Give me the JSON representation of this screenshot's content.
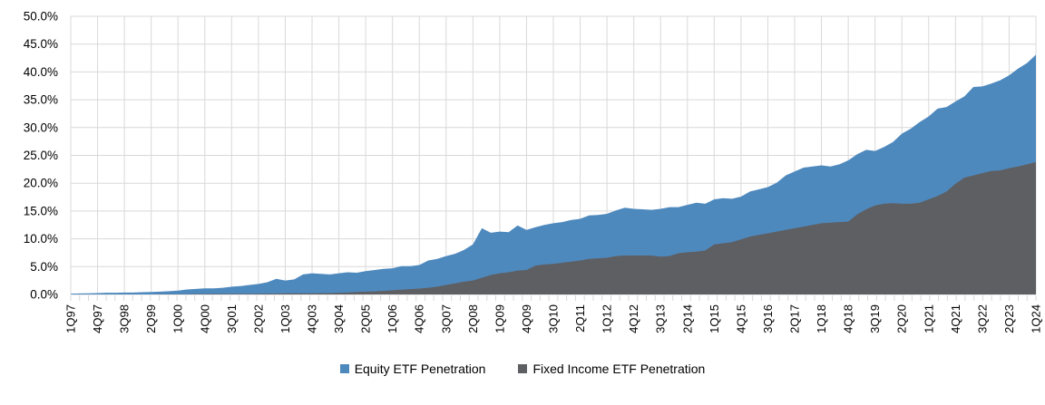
{
  "chart_data": {
    "type": "area",
    "title": "",
    "grid": "horizontal and vertical major gridlines",
    "legend_position": "bottom-center",
    "overlapping_areas": true,
    "y_axis": {
      "min": 0,
      "max": 50,
      "step": 5,
      "tick_labels": [
        "0.0%",
        "5.0%",
        "10.0%",
        "15.0%",
        "20.0%",
        "25.0%",
        "30.0%",
        "35.0%",
        "40.0%",
        "45.0%",
        "50.0%"
      ]
    },
    "x_axis": {
      "label_every_n_points": 3,
      "tick_labels": [
        "1Q97",
        "4Q97",
        "3Q98",
        "2Q99",
        "1Q00",
        "4Q00",
        "3Q01",
        "2Q02",
        "1Q03",
        "4Q03",
        "3Q04",
        "2Q05",
        "1Q06",
        "4Q06",
        "3Q07",
        "2Q08",
        "1Q09",
        "4Q09",
        "3Q10",
        "2Q11",
        "1Q12",
        "4Q12",
        "3Q13",
        "2Q14",
        "1Q15",
        "4Q15",
        "3Q16",
        "2Q17",
        "1Q18",
        "4Q18",
        "3Q19",
        "2Q20",
        "1Q21",
        "4Q21",
        "3Q22",
        "2Q23",
        "1Q24"
      ]
    },
    "series": [
      {
        "name": "Equity ETF Penetration",
        "color": "#4E89BE",
        "values_pct": [
          0.15,
          0.18,
          0.2,
          0.25,
          0.3,
          0.3,
          0.35,
          0.35,
          0.4,
          0.45,
          0.5,
          0.6,
          0.7,
          0.9,
          1.0,
          1.1,
          1.1,
          1.2,
          1.4,
          1.5,
          1.7,
          1.9,
          2.2,
          2.8,
          2.5,
          2.7,
          3.6,
          3.8,
          3.7,
          3.6,
          3.8,
          4.0,
          3.9,
          4.2,
          4.4,
          4.6,
          4.7,
          5.1,
          5.1,
          5.3,
          6.1,
          6.4,
          6.9,
          7.3,
          8.0,
          9.0,
          11.9,
          11.1,
          11.3,
          11.2,
          12.4,
          11.6,
          12.1,
          12.5,
          12.8,
          13.0,
          13.4,
          13.6,
          14.2,
          14.3,
          14.5,
          15.1,
          15.6,
          15.4,
          15.3,
          15.2,
          15.4,
          15.7,
          15.7,
          16.1,
          16.5,
          16.3,
          17.1,
          17.3,
          17.2,
          17.6,
          18.5,
          18.9,
          19.3,
          20.1,
          21.4,
          22.1,
          22.8,
          23.0,
          23.2,
          23.0,
          23.4,
          24.1,
          25.2,
          26.0,
          25.8,
          26.5,
          27.4,
          28.9,
          29.8,
          31.0,
          32.0,
          33.4,
          33.7,
          34.7,
          35.6,
          37.3,
          37.4,
          37.9,
          38.5,
          39.4,
          40.6,
          41.6,
          43.1
        ]
      },
      {
        "name": "Fixed Income ETF Penetration",
        "color": "#5E5F62",
        "values_pct": [
          0.0,
          0.0,
          0.0,
          0.0,
          0.0,
          0.0,
          0.0,
          0.0,
          0.0,
          0.0,
          0.05,
          0.05,
          0.05,
          0.05,
          0.08,
          0.08,
          0.1,
          0.1,
          0.1,
          0.1,
          0.1,
          0.12,
          0.15,
          0.15,
          0.2,
          0.2,
          0.2,
          0.2,
          0.25,
          0.25,
          0.3,
          0.35,
          0.45,
          0.5,
          0.55,
          0.65,
          0.75,
          0.85,
          0.95,
          1.05,
          1.2,
          1.4,
          1.7,
          2.0,
          2.3,
          2.5,
          3.0,
          3.5,
          3.8,
          4.0,
          4.3,
          4.4,
          5.2,
          5.4,
          5.5,
          5.7,
          5.9,
          6.1,
          6.4,
          6.5,
          6.6,
          6.9,
          7.0,
          7.0,
          7.0,
          7.0,
          6.8,
          6.9,
          7.4,
          7.6,
          7.7,
          7.9,
          9.0,
          9.2,
          9.4,
          9.9,
          10.4,
          10.7,
          11.0,
          11.3,
          11.6,
          11.9,
          12.2,
          12.5,
          12.8,
          12.9,
          13.0,
          13.1,
          14.4,
          15.3,
          16.0,
          16.3,
          16.4,
          16.3,
          16.3,
          16.5,
          17.1,
          17.7,
          18.5,
          19.9,
          21.0,
          21.4,
          21.8,
          22.2,
          22.3,
          22.7,
          23.0,
          23.4,
          23.8
        ]
      }
    ]
  },
  "colors": {
    "gridline": "#D9D9D9",
    "axis_line": "#D9D9D9",
    "tick_mark": "#D9D9D9",
    "axis_text": "#000000",
    "background": "#FFFFFF"
  }
}
